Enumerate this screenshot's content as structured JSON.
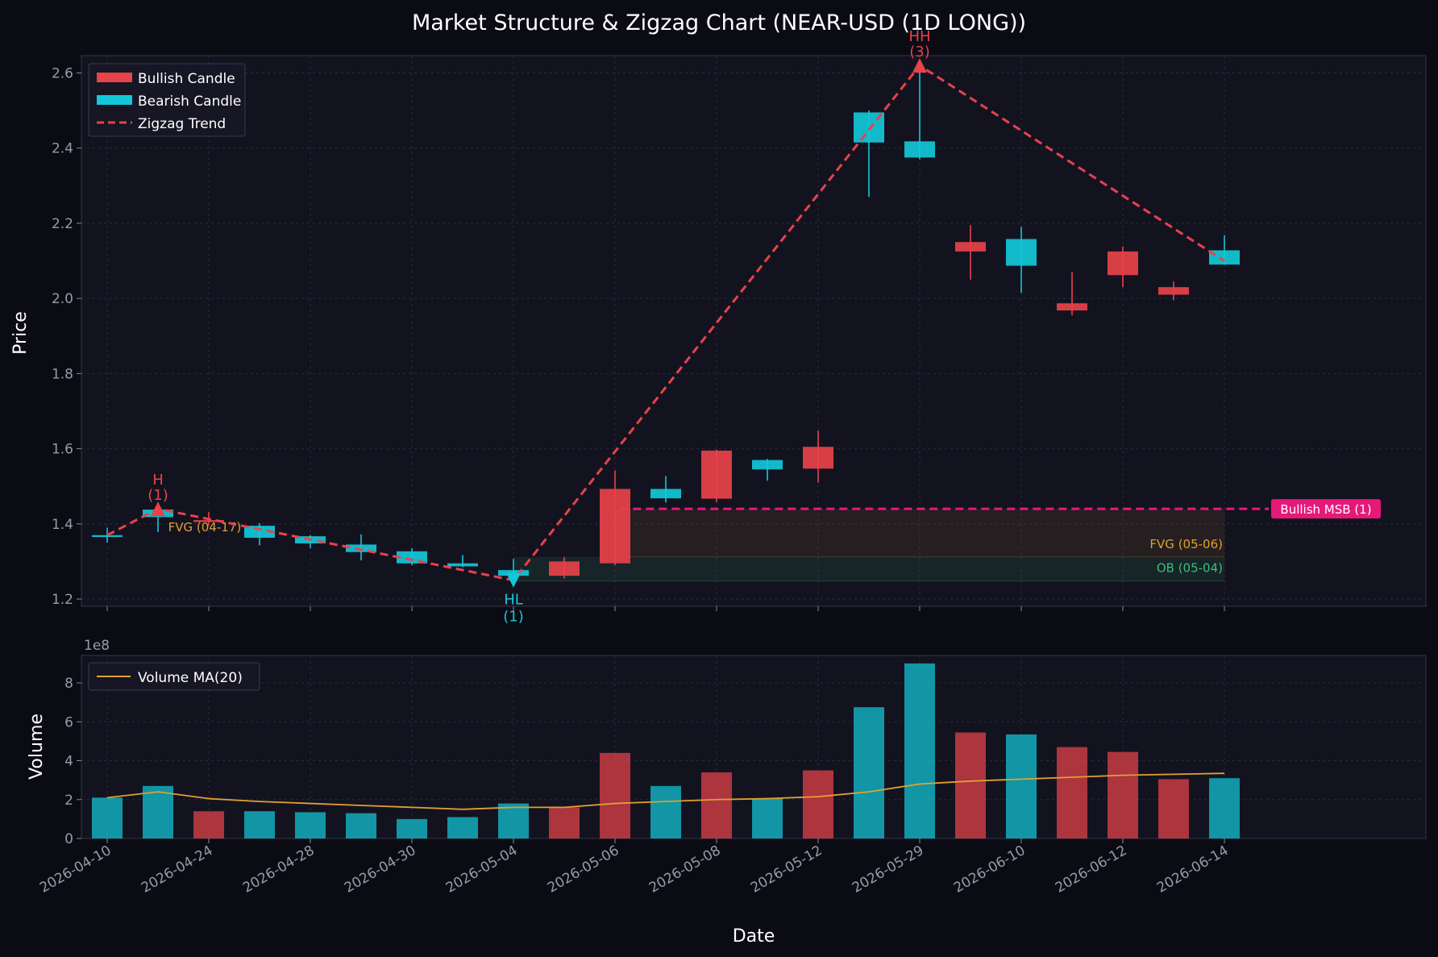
{
  "colors": {
    "background": "#0b0b14",
    "panel": "#131320",
    "bullish": "#e8424a",
    "bearish": "#12c8d8",
    "zigzag": "#e8424a",
    "msb": "#e6197a",
    "fvg": "#e0a030",
    "ob": "#3cbd7a",
    "volume_ma": "#e0a030",
    "grid": "#2a2a3a",
    "tick": "#9a9aa8"
  },
  "chart_data": {
    "type": "candlestick",
    "title": "Market Structure & Zigzag Chart (NEAR-USD (1D LONG))",
    "price_panel": {
      "ylabel": "Price",
      "ylim": [
        1.18,
        2.69
      ],
      "yticks": [
        "1.2",
        "1.4",
        "1.6",
        "1.8",
        "2.0",
        "2.2",
        "2.4",
        "2.6"
      ],
      "grid": true,
      "legend_placement": "top-left"
    },
    "volume_panel": {
      "ylabel": "Volume",
      "xlabel": "Date",
      "ylim": [
        0,
        95
      ],
      "yticks": [
        "0",
        "2",
        "4",
        "6",
        "8"
      ],
      "exponent_label": "1e8",
      "grid": true,
      "legend_placement": "top-left"
    },
    "x_tick_labels": [
      "2026-04-10",
      "2026-04-24",
      "2026-04-28",
      "2026-04-30",
      "2026-05-04",
      "2026-05-06",
      "2026-05-08",
      "2026-05-12",
      "2026-05-29",
      "2026-06-10",
      "2026-06-12",
      "2026-06-14"
    ],
    "legend": [
      "Bullish Candle",
      "Bearish Candle",
      "Zigzag Trend"
    ],
    "volume_legend": "Volume MA(20)",
    "candles": [
      {
        "i": 0,
        "open": 1.365,
        "close": 1.37,
        "high": 1.39,
        "low": 1.35,
        "type": "bearish",
        "volume": 21
      },
      {
        "i": 1,
        "open": 1.418,
        "close": 1.438,
        "high": 1.45,
        "low": 1.378,
        "type": "bearish",
        "volume": 27
      },
      {
        "i": 2,
        "open": 1.405,
        "close": 1.41,
        "high": 1.432,
        "low": 1.395,
        "type": "bullish",
        "volume": 14
      },
      {
        "i": 3,
        "open": 1.363,
        "close": 1.395,
        "high": 1.402,
        "low": 1.343,
        "type": "bearish",
        "volume": 14
      },
      {
        "i": 4,
        "open": 1.348,
        "close": 1.367,
        "high": 1.37,
        "low": 1.335,
        "type": "bearish",
        "volume": 13.5
      },
      {
        "i": 5,
        "open": 1.325,
        "close": 1.345,
        "high": 1.372,
        "low": 1.303,
        "type": "bearish",
        "volume": 13
      },
      {
        "i": 6,
        "open": 1.295,
        "close": 1.327,
        "high": 1.335,
        "low": 1.29,
        "type": "bearish",
        "volume": 10
      },
      {
        "i": 7,
        "open": 1.287,
        "close": 1.295,
        "high": 1.317,
        "low": 1.285,
        "type": "bearish",
        "volume": 11
      },
      {
        "i": 8,
        "open": 1.262,
        "close": 1.277,
        "high": 1.307,
        "low": 1.255,
        "type": "bearish",
        "volume": 18
      },
      {
        "i": 9,
        "open": 1.262,
        "close": 1.3,
        "high": 1.312,
        "low": 1.255,
        "type": "bullish",
        "volume": 16
      },
      {
        "i": 10,
        "open": 1.295,
        "close": 1.493,
        "high": 1.542,
        "low": 1.29,
        "type": "bullish",
        "volume": 44
      },
      {
        "i": 11,
        "open": 1.468,
        "close": 1.493,
        "high": 1.527,
        "low": 1.457,
        "type": "bearish",
        "volume": 27
      },
      {
        "i": 12,
        "open": 1.467,
        "close": 1.595,
        "high": 1.598,
        "low": 1.458,
        "type": "bullish",
        "volume": 34
      },
      {
        "i": 13,
        "open": 1.545,
        "close": 1.57,
        "high": 1.573,
        "low": 1.515,
        "type": "bearish",
        "volume": 20.5
      },
      {
        "i": 14,
        "open": 1.547,
        "close": 1.605,
        "high": 1.648,
        "low": 1.51,
        "type": "bullish",
        "volume": 35
      },
      {
        "i": 15,
        "open": 2.415,
        "close": 2.495,
        "high": 2.5,
        "low": 2.27,
        "type": "bearish",
        "volume": 67.5
      },
      {
        "i": 16,
        "open": 2.375,
        "close": 2.418,
        "high": 2.61,
        "low": 2.37,
        "type": "bearish",
        "volume": 90
      },
      {
        "i": 17,
        "open": 2.125,
        "close": 2.15,
        "high": 2.195,
        "low": 2.05,
        "type": "bullish",
        "volume": 54.5
      },
      {
        "i": 18,
        "open": 2.087,
        "close": 2.158,
        "high": 2.19,
        "low": 2.015,
        "type": "bearish",
        "volume": 53.5
      },
      {
        "i": 19,
        "open": 1.968,
        "close": 1.987,
        "high": 2.07,
        "low": 1.955,
        "type": "bullish",
        "volume": 47
      },
      {
        "i": 20,
        "open": 2.062,
        "close": 2.125,
        "high": 2.138,
        "low": 2.03,
        "type": "bullish",
        "volume": 44.5
      },
      {
        "i": 21,
        "open": 2.01,
        "close": 2.03,
        "high": 2.045,
        "low": 1.995,
        "type": "bullish",
        "volume": 30.5
      },
      {
        "i": 22,
        "open": 2.09,
        "close": 2.128,
        "high": 2.168,
        "low": 2.09,
        "type": "bearish",
        "volume": 31
      }
    ],
    "volume_ma": [
      21,
      24,
      20.5,
      19,
      18,
      17,
      16,
      15,
      16,
      16,
      18,
      19,
      20,
      20.5,
      21.5,
      24,
      28,
      29.5,
      30.5,
      31.5,
      32.5,
      33,
      33.5
    ],
    "zigzag": [
      {
        "i": 0,
        "price": 1.37
      },
      {
        "i": 1,
        "price": 1.44
      },
      {
        "i": 8,
        "price": 1.25
      },
      {
        "i": 16,
        "price": 2.62
      },
      {
        "i": 22,
        "price": 2.1
      }
    ],
    "pivots": [
      {
        "i": 1,
        "price": 1.44,
        "label": "H",
        "count": "(1)",
        "direction": "up"
      },
      {
        "i": 8,
        "price": 1.25,
        "label": "HL",
        "count": "(1)",
        "direction": "down"
      },
      {
        "i": 16,
        "price": 2.62,
        "label": "HH",
        "count": "(3)",
        "direction": "up"
      }
    ],
    "msb": {
      "price": 1.44,
      "start_i": 10.1,
      "label": "Bullish MSB (1)"
    },
    "zones": [
      {
        "label": "FVG (04-17)",
        "type": "fvg",
        "start_i": 1.2,
        "end_i": 3.0,
        "bottom": 1.41,
        "top": 1.41
      },
      {
        "label": "FVG (05-06)",
        "type": "fvg",
        "start_i": 10.0,
        "end_i": 22.0,
        "bottom": 1.312,
        "top": 1.44
      },
      {
        "label": "OB (05-04)",
        "type": "ob",
        "start_i": 8.0,
        "end_i": 22.0,
        "bottom": 1.248,
        "top": 1.312
      }
    ]
  }
}
